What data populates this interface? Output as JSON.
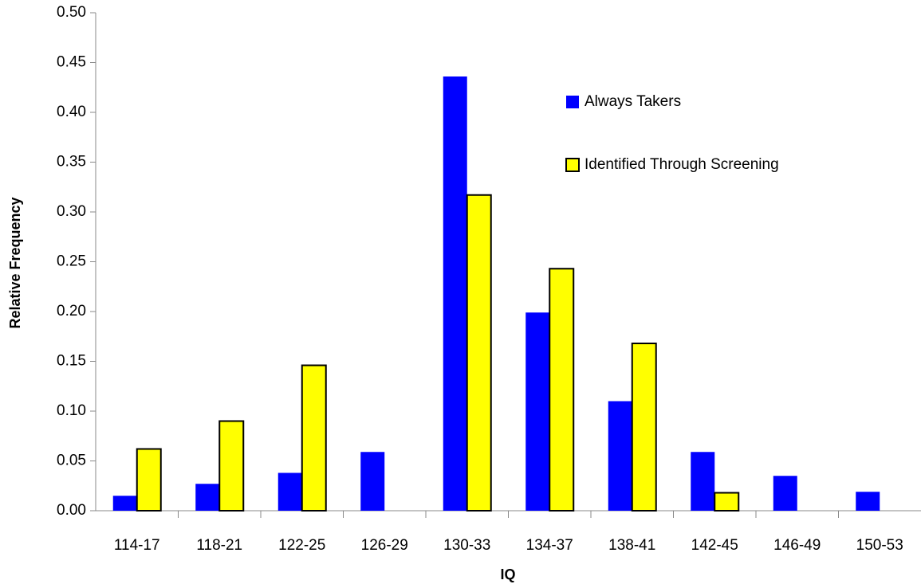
{
  "chart_data": {
    "type": "bar",
    "x_label": "IQ",
    "y_label": "Relative Frequency",
    "categories": [
      "114-17",
      "118-21",
      "122-25",
      "126-29",
      "130-33",
      "134-37",
      "138-41",
      "142-45",
      "146-49",
      "150-53"
    ],
    "series": [
      {
        "name": "Always Takers",
        "color": "#0000ff",
        "values": [
          0.015,
          0.027,
          0.038,
          0.059,
          0.436,
          0.199,
          0.11,
          0.059,
          0.035,
          0.019
        ]
      },
      {
        "name": "Identified Through Screening",
        "color": "#ffff00",
        "values": [
          0.062,
          0.09,
          0.146,
          null,
          0.317,
          0.243,
          0.168,
          0.018,
          null,
          null
        ]
      }
    ],
    "ylim": [
      0,
      0.5
    ],
    "yticks": [
      {
        "value": 0,
        "label": "0.00"
      },
      {
        "value": 0.05,
        "label": "0.05"
      },
      {
        "value": 0.1,
        "label": "0.10"
      },
      {
        "value": 0.15,
        "label": "0.15"
      },
      {
        "value": 0.2,
        "label": "0.20"
      },
      {
        "value": 0.25,
        "label": "0.25"
      },
      {
        "value": 0.3,
        "label": "0.30"
      },
      {
        "value": 0.35,
        "label": "0.35"
      },
      {
        "value": 0.4,
        "label": "0.40"
      },
      {
        "value": 0.45,
        "label": "0.45"
      },
      {
        "value": 0.5,
        "label": "0.50"
      }
    ],
    "grid": false
  }
}
